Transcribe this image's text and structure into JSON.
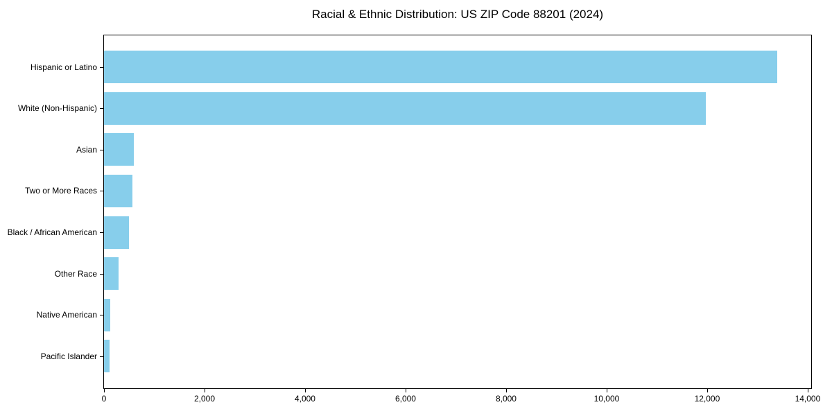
{
  "chart_data": {
    "type": "bar",
    "orientation": "horizontal",
    "title": "Racial & Ethnic Distribution: US ZIP Code 88201 (2024)",
    "categories": [
      "Hispanic or Latino",
      "White (Non-Hispanic)",
      "Asian",
      "Two or More Races",
      "Black / African American",
      "Other Race",
      "Native American",
      "Pacific Islander"
    ],
    "values": [
      13400,
      11980,
      590,
      560,
      500,
      285,
      130,
      112
    ],
    "xlabel": "",
    "ylabel": "",
    "xlim": [
      0,
      14070
    ],
    "x_ticks": [
      0,
      2000,
      4000,
      6000,
      8000,
      10000,
      12000,
      14000
    ],
    "x_tick_labels": [
      "0",
      "2,000",
      "4,000",
      "6,000",
      "8,000",
      "10,000",
      "12,000",
      "14,000"
    ],
    "grid": false,
    "legend_position": "none",
    "colors": {
      "bar_fill": "#87CEEB",
      "spine": "#000000",
      "text": "#000000",
      "background": "#ffffff"
    }
  }
}
